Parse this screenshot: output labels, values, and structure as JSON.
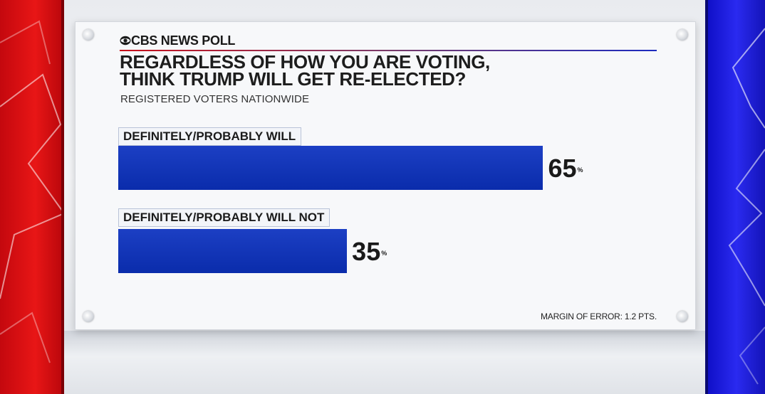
{
  "header": {
    "brand": "CBS NEWS POLL",
    "title_line1": "REGARDLESS OF HOW YOU ARE VOTING,",
    "title_line2": "THINK TRUMP WILL GET RE-ELECTED?",
    "subtitle": "REGISTERED VOTERS NATIONWIDE"
  },
  "footer": {
    "margin_of_error": "MARGIN OF ERROR: 1.2 PTS."
  },
  "colors": {
    "bar": "#0a2cab",
    "left_stripe": "#e81616",
    "right_stripe": "#2a2af0"
  },
  "chart_data": {
    "type": "bar",
    "orientation": "horizontal",
    "title": "REGARDLESS OF HOW YOU ARE VOTING, THINK TRUMP WILL GET RE-ELECTED?",
    "subtitle": "REGISTERED VOTERS NATIONWIDE",
    "categories": [
      "DEFINITELY/PROBABLY WILL",
      "DEFINITELY/PROBABLY WILL NOT"
    ],
    "values": [
      65,
      35
    ],
    "value_labels": [
      "65",
      "35"
    ],
    "unit": "%",
    "xlim": [
      0,
      85
    ],
    "grid": false,
    "legend": "none"
  }
}
